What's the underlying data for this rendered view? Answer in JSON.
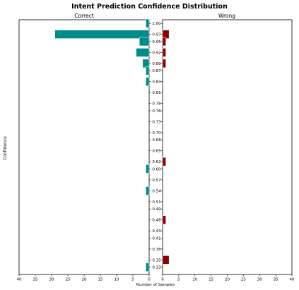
{
  "chart_data": {
    "type": "bar",
    "title": "Intent Prediction Confidence Distribution",
    "xlabel": "Number of Samples",
    "ylabel": "Confidence",
    "orientation": "horizontal",
    "xlim": [
      0,
      40
    ],
    "x_ticks": [
      0,
      5,
      10,
      15,
      20,
      25,
      30,
      35,
      40
    ],
    "y_tick_labels": [
      "1.00",
      "0.97",
      "0.95",
      "0.92",
      "0.89",
      "0.87",
      "0.84",
      "0.81",
      "0.78",
      "0.76",
      "0.73",
      "0.70",
      "0.68",
      "0.65",
      "0.62",
      "0.60",
      "0.57",
      "0.54",
      "0.51",
      "0.49",
      "0.46",
      "0.43",
      "0.41",
      "0.38",
      "0.35",
      "0.33"
    ],
    "grid": false,
    "series": [
      {
        "name": "Correct",
        "color": "#008b8b",
        "points": [
          {
            "y": 1.0,
            "count": 1
          },
          {
            "y": 0.97,
            "count": 29
          },
          {
            "y": 0.95,
            "count": 3
          },
          {
            "y": 0.92,
            "count": 4
          },
          {
            "y": 0.89,
            "count": 2
          },
          {
            "y": 0.87,
            "count": 1
          },
          {
            "y": 0.84,
            "count": 1
          },
          {
            "y": 0.6,
            "count": 1
          },
          {
            "y": 0.54,
            "count": 1
          },
          {
            "y": 0.33,
            "count": 1
          }
        ]
      },
      {
        "name": "Wrong",
        "color": "#8b0000",
        "points": [
          {
            "y": 0.97,
            "count": 2
          },
          {
            "y": 0.95,
            "count": 1
          },
          {
            "y": 0.92,
            "count": 1
          },
          {
            "y": 0.89,
            "count": 1
          },
          {
            "y": 0.62,
            "count": 1
          },
          {
            "y": 0.46,
            "count": 1
          },
          {
            "y": 0.35,
            "count": 2
          }
        ]
      }
    ]
  }
}
